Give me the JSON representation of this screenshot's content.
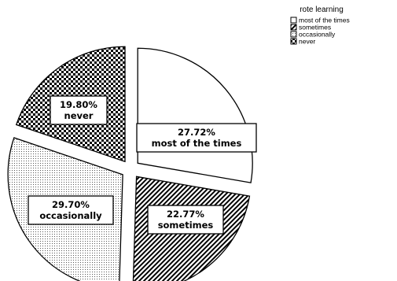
{
  "chart_data": {
    "type": "pie",
    "title": "",
    "legend_title": "rote learning",
    "legend_position": "top-right",
    "categories": [
      "most of the times",
      "sometimes",
      "occasionally",
      "never"
    ],
    "values": [
      27.72,
      22.77,
      29.7,
      19.8
    ],
    "percent_labels": [
      "27.72%",
      "22.77%",
      "29.70%",
      "19.80%"
    ],
    "exploded": true,
    "patterns": [
      "blank",
      "diagonal-hatch",
      "fine-dots",
      "checkerboard"
    ],
    "start_angle_deg": 0,
    "direction": "clockwise"
  },
  "colors": {
    "background": "#ffffff",
    "stroke": "#000000"
  }
}
